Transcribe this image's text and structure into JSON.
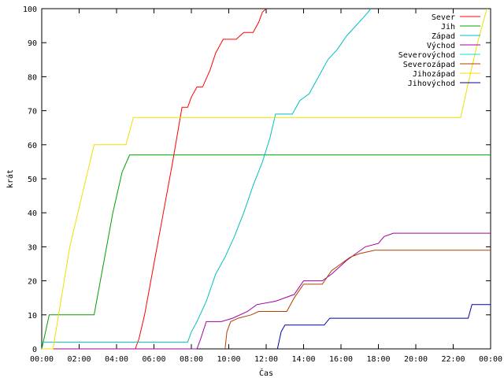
{
  "chart_data": {
    "type": "line",
    "xlabel": "Čas",
    "ylabel": "krát",
    "xlim": [
      0,
      24
    ],
    "ylim": [
      0,
      100
    ],
    "x_ticks": [
      {
        "value": 0,
        "label": "00:00"
      },
      {
        "value": 2,
        "label": "02:00"
      },
      {
        "value": 4,
        "label": "04:00"
      },
      {
        "value": 6,
        "label": "06:00"
      },
      {
        "value": 8,
        "label": "08:00"
      },
      {
        "value": 10,
        "label": "10:00"
      },
      {
        "value": 12,
        "label": "12:00"
      },
      {
        "value": 14,
        "label": "14:00"
      },
      {
        "value": 16,
        "label": "16:00"
      },
      {
        "value": 18,
        "label": "18:00"
      },
      {
        "value": 20,
        "label": "20:00"
      },
      {
        "value": 22,
        "label": "22:00"
      },
      {
        "value": 24,
        "label": "00:00"
      }
    ],
    "y_ticks": [
      0,
      10,
      20,
      30,
      40,
      50,
      60,
      70,
      80,
      90,
      100
    ],
    "grid": false,
    "legend_position": "top-right",
    "series": [
      {
        "name": "Sever",
        "color": "#ff0000",
        "points": [
          [
            0,
            0
          ],
          [
            5.0,
            0
          ],
          [
            5.2,
            3
          ],
          [
            5.5,
            10
          ],
          [
            6.0,
            25
          ],
          [
            6.5,
            40
          ],
          [
            7.0,
            55
          ],
          [
            7.5,
            71
          ],
          [
            7.8,
            71
          ],
          [
            8.0,
            74
          ],
          [
            8.3,
            77
          ],
          [
            8.6,
            77
          ],
          [
            9.0,
            82
          ],
          [
            9.3,
            87
          ],
          [
            9.7,
            91
          ],
          [
            10.4,
            91
          ],
          [
            10.8,
            93
          ],
          [
            11.3,
            93
          ],
          [
            11.6,
            96
          ],
          [
            11.8,
            99
          ],
          [
            12.0,
            100
          ]
        ]
      },
      {
        "name": "Jih",
        "color": "#00a000",
        "points": [
          [
            0,
            0
          ],
          [
            0.2,
            5
          ],
          [
            0.4,
            10
          ],
          [
            2.8,
            10
          ],
          [
            3.3,
            25
          ],
          [
            3.8,
            40
          ],
          [
            4.3,
            52
          ],
          [
            4.7,
            57
          ],
          [
            24,
            57
          ]
        ]
      },
      {
        "name": "Západ",
        "color": "#00c0c0",
        "points": [
          [
            0,
            2
          ],
          [
            7.8,
            2
          ],
          [
            8.0,
            5
          ],
          [
            8.3,
            8
          ],
          [
            8.8,
            14
          ],
          [
            9.3,
            22
          ],
          [
            9.8,
            27
          ],
          [
            10.3,
            33
          ],
          [
            10.8,
            40
          ],
          [
            11.3,
            48
          ],
          [
            11.8,
            55
          ],
          [
            12.2,
            62
          ],
          [
            12.5,
            69
          ],
          [
            13.4,
            69
          ],
          [
            13.8,
            73
          ],
          [
            14.3,
            75
          ],
          [
            14.8,
            80
          ],
          [
            15.3,
            85
          ],
          [
            15.8,
            88
          ],
          [
            16.3,
            92
          ],
          [
            16.8,
            95
          ],
          [
            17.3,
            98
          ],
          [
            17.6,
            100
          ]
        ]
      },
      {
        "name": "Východ",
        "color": "#a000a0",
        "points": [
          [
            0,
            0
          ],
          [
            8.3,
            0
          ],
          [
            8.5,
            3
          ],
          [
            8.8,
            8
          ],
          [
            9.6,
            8
          ],
          [
            10.2,
            9
          ],
          [
            11.0,
            11
          ],
          [
            11.5,
            13
          ],
          [
            12.5,
            14
          ],
          [
            13.5,
            16
          ],
          [
            14.0,
            20
          ],
          [
            15.0,
            20
          ],
          [
            15.5,
            22
          ],
          [
            16.3,
            26
          ],
          [
            16.8,
            28
          ],
          [
            17.3,
            30
          ],
          [
            18.0,
            31
          ],
          [
            18.3,
            33
          ],
          [
            18.8,
            34
          ],
          [
            24,
            34
          ]
        ]
      },
      {
        "name": "Severovýchod",
        "color": "#00e0e0",
        "points": [
          [
            12.0,
            100
          ],
          [
            12.0,
            100
          ]
        ]
      },
      {
        "name": "Severozápad",
        "color": "#b04000",
        "points": [
          [
            9.8,
            0
          ],
          [
            9.9,
            5
          ],
          [
            10.1,
            8
          ],
          [
            10.5,
            9
          ],
          [
            11.2,
            10
          ],
          [
            11.6,
            11
          ],
          [
            13.1,
            11
          ],
          [
            13.5,
            15
          ],
          [
            14.0,
            19
          ],
          [
            15.0,
            19
          ],
          [
            15.5,
            23
          ],
          [
            16.0,
            25
          ],
          [
            16.5,
            27
          ],
          [
            17.0,
            28
          ],
          [
            17.8,
            29
          ],
          [
            24,
            29
          ]
        ]
      },
      {
        "name": "Jihozápad",
        "color": "#f0e000",
        "points": [
          [
            0,
            0
          ],
          [
            0.6,
            0
          ],
          [
            1.5,
            30
          ],
          [
            2.8,
            60
          ],
          [
            4.5,
            60
          ],
          [
            4.9,
            68
          ],
          [
            22.4,
            68
          ],
          [
            22.8,
            78
          ],
          [
            23.3,
            90
          ],
          [
            23.8,
            100
          ]
        ]
      },
      {
        "name": "Jihovýchod",
        "color": "#0000a0",
        "points": [
          [
            12.6,
            0
          ],
          [
            12.8,
            5
          ],
          [
            13.0,
            7
          ],
          [
            15.1,
            7
          ],
          [
            15.4,
            9
          ],
          [
            22.8,
            9
          ],
          [
            23.0,
            13
          ],
          [
            24,
            13
          ]
        ]
      }
    ]
  }
}
